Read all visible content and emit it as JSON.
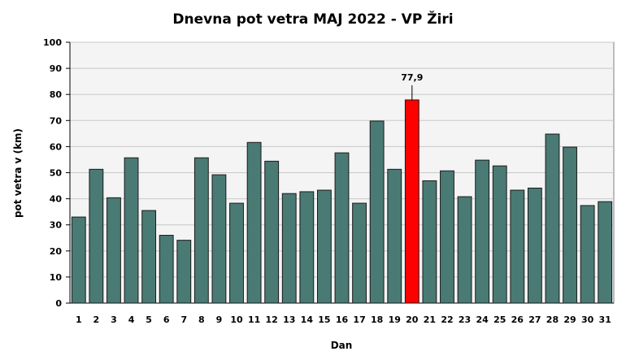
{
  "chart_data": {
    "type": "bar",
    "title": "Dnevna pot vetra MAJ 2022 - VP Žiri",
    "xlabel": "Dan",
    "ylabel": "pot vetra  v (km)",
    "ylim": [
      0,
      100
    ],
    "yticks": [
      0,
      10,
      20,
      30,
      40,
      50,
      60,
      70,
      80,
      90,
      100
    ],
    "grid": true,
    "categories": [
      "1",
      "2",
      "3",
      "4",
      "5",
      "6",
      "7",
      "8",
      "9",
      "10",
      "11",
      "12",
      "13",
      "14",
      "15",
      "16",
      "17",
      "18",
      "19",
      "20",
      "21",
      "22",
      "23",
      "24",
      "25",
      "26",
      "27",
      "28",
      "29",
      "30",
      "31"
    ],
    "values": [
      33.0,
      51.3,
      40.4,
      55.7,
      35.5,
      26.0,
      24.1,
      55.7,
      49.2,
      38.3,
      61.6,
      54.4,
      42.0,
      42.7,
      43.3,
      57.6,
      38.3,
      69.8,
      51.3,
      77.9,
      46.9,
      50.7,
      40.8,
      54.8,
      52.6,
      43.3,
      44.1,
      64.8,
      59.8,
      37.4,
      38.9
    ],
    "highlight": {
      "category": "20",
      "value": 77.9,
      "label": "77,9"
    },
    "colors": {
      "bar": "#4a7a74",
      "highlight": "#ff0000",
      "plot_bg": "#f4f4f4",
      "grid": "#c8c8c8"
    }
  }
}
